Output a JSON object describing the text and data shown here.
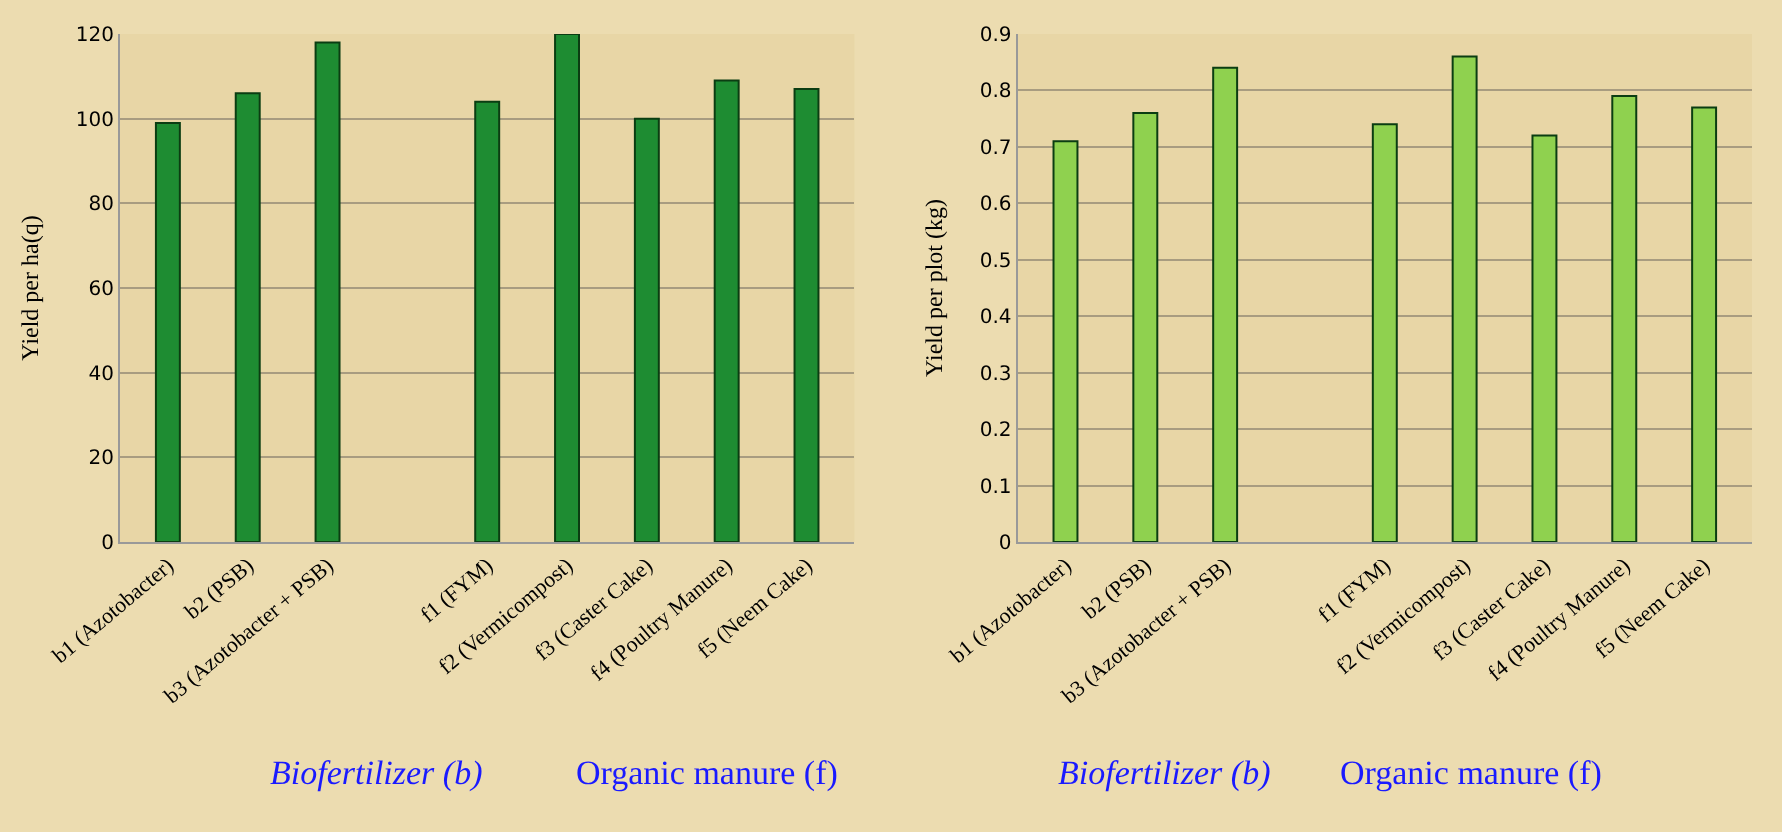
{
  "chart_data": [
    {
      "type": "bar",
      "ylabel": "Yield per ha(q)",
      "categories": [
        "b1 (Azotobacter)",
        "b2 (PSB)",
        "b3 (Azotobacter + PSB)",
        null,
        "f1 (FYM)",
        "f2 (Vermicompost)",
        "f3 (Caster Cake)",
        "f4 (Poultry Manure)",
        "f5 (Neem Cake)"
      ],
      "values": [
        99,
        106,
        118,
        null,
        104,
        120,
        100,
        109,
        107
      ],
      "color": "#1e8c32",
      "ylim": [
        0,
        120
      ],
      "yticks": [
        0,
        20,
        40,
        60,
        80,
        100,
        120
      ],
      "grid": "y",
      "annotations": [
        "Biofertilizer (b)",
        "Organic manure (f)"
      ]
    },
    {
      "type": "bar",
      "ylabel": "Yield per plot (kg)",
      "categories": [
        "b1 (Azotobacter)",
        "b2 (PSB)",
        "b3 (Azotobacter + PSB)",
        null,
        "f1 (FYM)",
        "f2 (Vermicompost)",
        "f3 (Caster Cake)",
        "f4 (Poultry Manure)",
        "f5 (Neem Cake)"
      ],
      "values": [
        0.71,
        0.76,
        0.84,
        null,
        0.74,
        0.86,
        0.72,
        0.79,
        0.77
      ],
      "color": "#8fd14f",
      "ylim": [
        0,
        0.9
      ],
      "yticks": [
        0,
        0.1,
        0.2,
        0.3,
        0.4,
        0.5,
        0.6,
        0.7,
        0.8,
        0.9
      ],
      "grid": "y",
      "annotations": [
        "Biofertilizer (b)",
        "Organic manure (f)"
      ]
    }
  ]
}
